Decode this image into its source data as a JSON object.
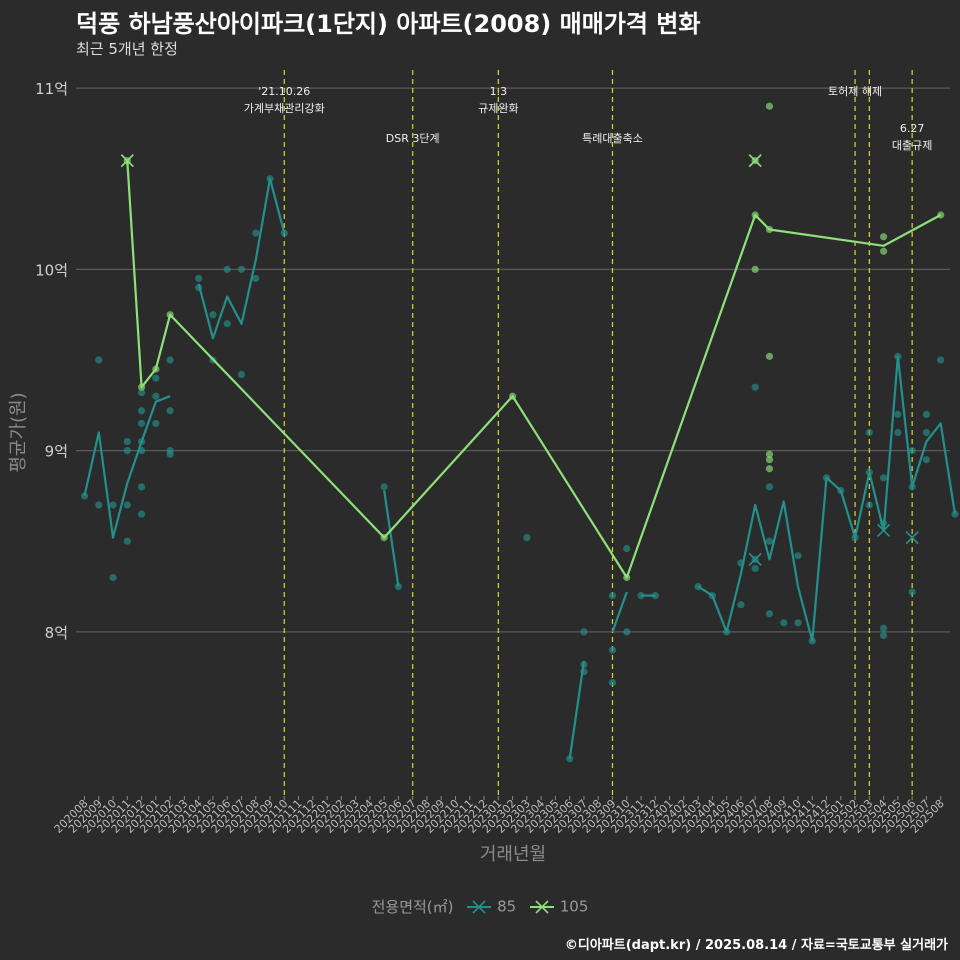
{
  "title": "덕풍 하남풍산아이파크(1단지) 아파트(2008) 매매가격 변화",
  "subtitle": "최근 5개년 한정",
  "caption": "©디아파트(dapt.kr) / 2025.08.14 / 자료=국토교통부 실거래가",
  "colors": {
    "bg": "#2b2b2b",
    "grid": "#5a5a5a",
    "vline": "#d8d830",
    "s85": "#23908c",
    "s105": "#8ee07a",
    "axisText": "#bbbbbb"
  },
  "chart_data": {
    "type": "line",
    "title": "덕풍 하남풍산아이파크(1단지) 아파트(2008) 매매가격 변화",
    "subtitle": "최근 5개년 한정",
    "xlabel": "거래년월",
    "ylabel": "평균가(원)",
    "legend_title": "전용면적(㎡)",
    "legend_position": "bottom",
    "grid": true,
    "ylim": [
      7.1,
      11.1
    ],
    "y_ticks": [
      8,
      9,
      10,
      11
    ],
    "y_tick_labels": [
      "8억",
      "9억",
      "10억",
      "11억"
    ],
    "x_months": [
      "202008",
      "202009",
      "202010",
      "202011",
      "202012",
      "202101",
      "202102",
      "202103",
      "202104",
      "202105",
      "202106",
      "202107",
      "202108",
      "202109",
      "202110",
      "202111",
      "202112",
      "202201",
      "202202",
      "202203",
      "202204",
      "202205",
      "202206",
      "202207",
      "202208",
      "202209",
      "202210",
      "202211",
      "202212",
      "202301",
      "202302",
      "202303",
      "202304",
      "202305",
      "202306",
      "202307",
      "202308",
      "202309",
      "202310",
      "202311",
      "202312",
      "202401",
      "202402",
      "202403",
      "202404",
      "202405",
      "202406",
      "202407",
      "202408",
      "202409",
      "202410",
      "202411",
      "202412",
      "202501",
      "202502",
      "202503",
      "202504",
      "202505",
      "202506",
      "202507",
      "202508"
    ],
    "events": [
      {
        "month": "202110",
        "label": "'21.10.26\n가계부채관리강화",
        "row": 0
      },
      {
        "month": "202207",
        "label": "DSR 3단계",
        "row": 1
      },
      {
        "month": "202301",
        "label": "1.3\n규제완화",
        "row": 0
      },
      {
        "month": "202309",
        "label": "특례대출축소",
        "row": 1
      },
      {
        "month": "202502",
        "label": "토허제 해제",
        "row": 0
      },
      {
        "month": "202503",
        "label": "",
        "row": 0
      },
      {
        "month": "202506",
        "label": "6.27\n대출규제",
        "row": 1
      }
    ],
    "series": [
      {
        "name": "85",
        "line_segments": [
          [
            [
              "202008",
              8.75
            ],
            [
              "202009",
              9.1
            ],
            [
              "202010",
              8.52
            ],
            [
              "202011",
              8.82
            ],
            [
              "202012",
              9.05
            ],
            [
              "202101",
              9.27
            ],
            [
              "202102",
              9.3
            ]
          ],
          [
            [
              "202104",
              9.92
            ],
            [
              "202105",
              9.62
            ],
            [
              "202106",
              9.85
            ],
            [
              "202107",
              9.7
            ],
            [
              "202108",
              10.05
            ],
            [
              "202109",
              10.5
            ],
            [
              "202110",
              10.2
            ]
          ],
          [
            [
              "202205",
              8.78
            ],
            [
              "202206",
              8.25
            ]
          ],
          [
            [
              "202306",
              7.3
            ],
            [
              "202307",
              7.84
            ]
          ],
          [
            [
              "202309",
              8.0
            ],
            [
              "202310",
              8.22
            ]
          ],
          [
            [
              "202311",
              8.2
            ],
            [
              "202312",
              8.2
            ]
          ],
          [
            [
              "202403",
              8.25
            ],
            [
              "202404",
              8.2
            ],
            [
              "202405",
              8.0
            ],
            [
              "202406",
              8.32
            ],
            [
              "202407",
              8.7
            ],
            [
              "202408",
              8.4
            ],
            [
              "202409",
              8.72
            ],
            [
              "202410",
              8.25
            ],
            [
              "202411",
              7.95
            ],
            [
              "202412",
              8.85
            ],
            [
              "202501",
              8.78
            ],
            [
              "202502",
              8.52
            ],
            [
              "202503",
              8.88
            ],
            [
              "202504",
              8.56
            ],
            [
              "202505",
              9.52
            ],
            [
              "202506",
              8.8
            ],
            [
              "202507",
              9.05
            ],
            [
              "202508",
              9.15
            ],
            [
              "202509",
              8.65
            ]
          ]
        ],
        "points": [
          [
            "202008",
            8.75
          ],
          [
            "202009",
            9.5
          ],
          [
            "202009",
            8.7
          ],
          [
            "202010",
            8.7
          ],
          [
            "202010",
            8.3
          ],
          [
            "202011",
            8.7
          ],
          [
            "202011",
            8.5
          ],
          [
            "202011",
            9.0
          ],
          [
            "202011",
            9.05
          ],
          [
            "202012",
            9.32
          ],
          [
            "202012",
            9.15
          ],
          [
            "202012",
            9.22
          ],
          [
            "202012",
            9.05
          ],
          [
            "202012",
            8.8
          ],
          [
            "202012",
            8.65
          ],
          [
            "202012",
            9.0
          ],
          [
            "202101",
            9.4
          ],
          [
            "202101",
            9.3
          ],
          [
            "202101",
            9.15
          ],
          [
            "202102",
            9.5
          ],
          [
            "202102",
            9.22
          ],
          [
            "202102",
            9.0
          ],
          [
            "202102",
            8.98
          ],
          [
            "202104",
            9.95
          ],
          [
            "202104",
            9.9
          ],
          [
            "202105",
            9.75
          ],
          [
            "202105",
            9.5
          ],
          [
            "202106",
            10.0
          ],
          [
            "202106",
            9.7
          ],
          [
            "202107",
            10.0
          ],
          [
            "202107",
            9.42
          ],
          [
            "202108",
            10.2
          ],
          [
            "202108",
            9.95
          ],
          [
            "202109",
            10.5
          ],
          [
            "202110",
            10.2
          ],
          [
            "202205",
            8.8
          ],
          [
            "202206",
            8.25
          ],
          [
            "202303",
            8.52
          ],
          [
            "202306",
            7.3
          ],
          [
            "202307",
            8.0
          ],
          [
            "202307",
            7.78
          ],
          [
            "202307",
            7.82
          ],
          [
            "202309",
            8.2
          ],
          [
            "202309",
            7.9
          ],
          [
            "202309",
            7.72
          ],
          [
            "202310",
            8.46
          ],
          [
            "202310",
            8.0
          ],
          [
            "202311",
            8.2
          ],
          [
            "202312",
            8.2
          ],
          [
            "202403",
            8.25
          ],
          [
            "202404",
            8.2
          ],
          [
            "202405",
            8.0
          ],
          [
            "202406",
            8.15
          ],
          [
            "202406",
            8.38
          ],
          [
            "202407",
            9.35
          ],
          [
            "202407",
            8.4
          ],
          [
            "202407",
            8.35
          ],
          [
            "202408",
            8.8
          ],
          [
            "202408",
            8.5
          ],
          [
            "202408",
            8.1
          ],
          [
            "202409",
            8.05
          ],
          [
            "202410",
            8.42
          ],
          [
            "202410",
            8.05
          ],
          [
            "202411",
            7.95
          ],
          [
            "202412",
            8.85
          ],
          [
            "202501",
            8.78
          ],
          [
            "202502",
            8.52
          ],
          [
            "202503",
            9.1
          ],
          [
            "202503",
            8.7
          ],
          [
            "202503",
            8.88
          ],
          [
            "202504",
            8.6
          ],
          [
            "202504",
            8.85
          ],
          [
            "202504",
            7.98
          ],
          [
            "202504",
            8.02
          ],
          [
            "202505",
            9.2
          ],
          [
            "202505",
            9.1
          ],
          [
            "202505",
            9.52
          ],
          [
            "202506",
            9.0
          ],
          [
            "202506",
            8.8
          ],
          [
            "202506",
            8.22
          ],
          [
            "202507",
            9.2
          ],
          [
            "202507",
            9.1
          ],
          [
            "202507",
            8.95
          ],
          [
            "202508",
            9.5
          ],
          [
            "202509",
            8.65
          ]
        ],
        "cross_markers": [
          [
            "202407",
            8.4
          ],
          [
            "202504",
            8.56
          ],
          [
            "202506",
            8.52
          ]
        ]
      },
      {
        "name": "105",
        "line_segments": [
          [
            [
              "202011",
              10.6
            ],
            [
              "202012",
              9.35
            ],
            [
              "202101",
              9.45
            ],
            [
              "202102",
              9.75
            ],
            [
              "202205",
              8.52
            ],
            [
              "202302",
              9.3
            ],
            [
              "202310",
              8.3
            ],
            [
              "202407",
              10.3
            ],
            [
              "202408",
              10.22
            ],
            [
              "202504",
              10.13
            ],
            [
              "202508",
              10.3
            ]
          ]
        ],
        "points": [
          [
            "202011",
            10.6
          ],
          [
            "202012",
            9.35
          ],
          [
            "202101",
            9.45
          ],
          [
            "202102",
            9.75
          ],
          [
            "202205",
            8.52
          ],
          [
            "202302",
            9.3
          ],
          [
            "202310",
            8.3
          ],
          [
            "202407",
            10.6
          ],
          [
            "202407",
            10.0
          ],
          [
            "202407",
            10.3
          ],
          [
            "202408",
            10.9
          ],
          [
            "202408",
            10.22
          ],
          [
            "202408",
            9.52
          ],
          [
            "202408",
            8.98
          ],
          [
            "202408",
            8.95
          ],
          [
            "202408",
            8.9
          ],
          [
            "202504",
            10.18
          ],
          [
            "202504",
            10.1
          ],
          [
            "202508",
            10.3
          ]
        ],
        "cross_markers": [
          [
            "202011",
            10.6
          ],
          [
            "202407",
            10.6
          ]
        ]
      }
    ]
  }
}
